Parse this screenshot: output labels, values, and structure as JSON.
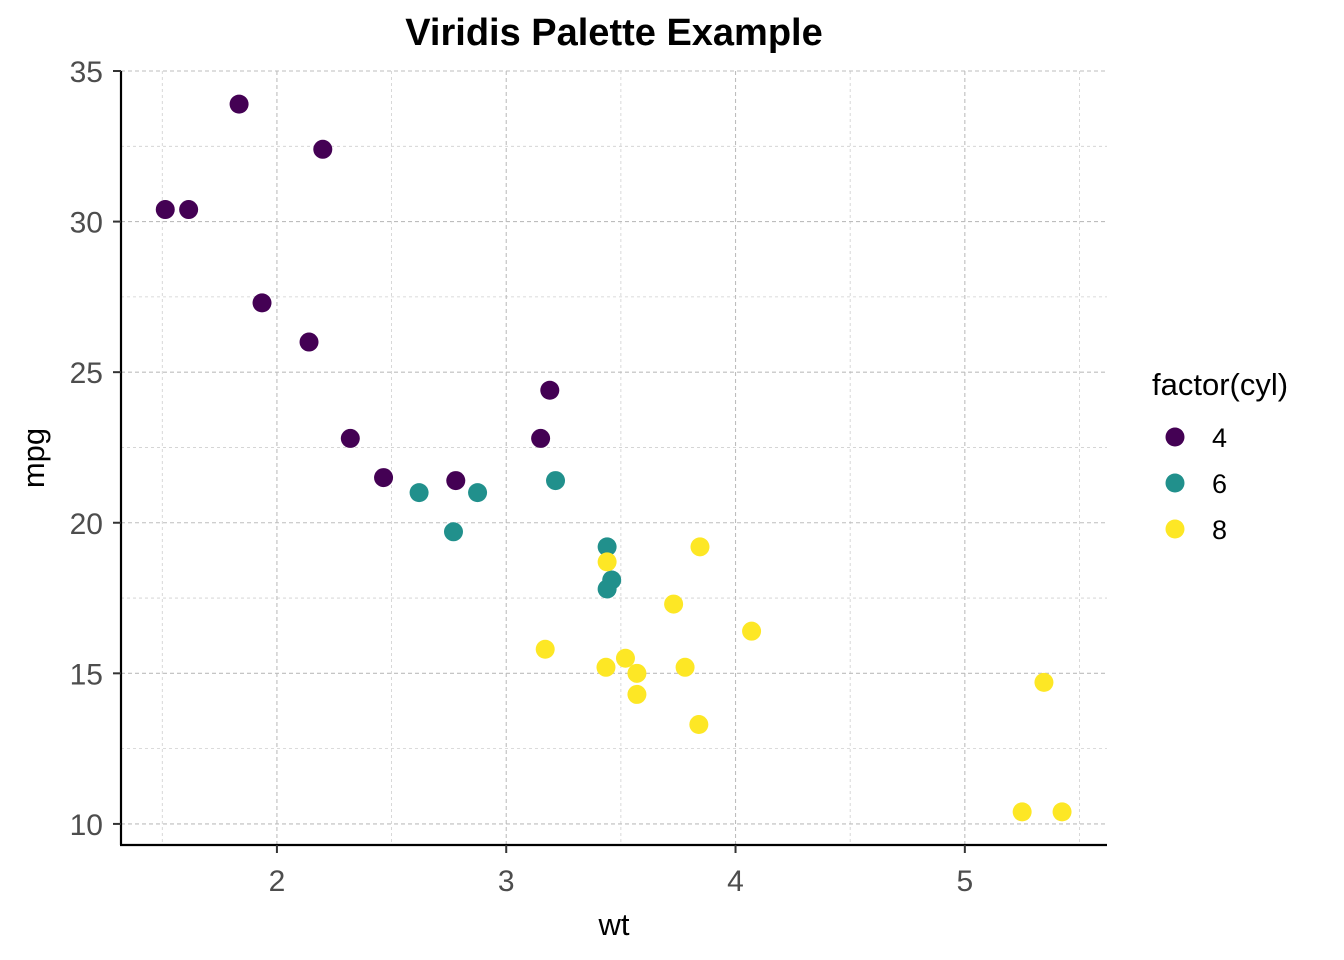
{
  "chart_data": {
    "type": "scatter",
    "title": "Viridis Palette Example",
    "xlabel": "wt",
    "ylabel": "mpg",
    "xlim": [
      1.32,
      5.62
    ],
    "ylim": [
      9.3,
      35.0
    ],
    "x_ticks": [
      2,
      3,
      4,
      5
    ],
    "y_ticks": [
      10,
      15,
      20,
      25,
      30,
      35
    ],
    "x_minor": [
      1.5,
      2.5,
      3.5,
      4.5,
      5.5
    ],
    "y_minor": [
      12.5,
      17.5,
      22.5,
      27.5,
      32.5
    ],
    "grid": true,
    "legend": {
      "title": "factor(cyl)",
      "position": "right"
    },
    "series": [
      {
        "name": "4",
        "color": "#440154",
        "points": [
          {
            "x": 2.32,
            "y": 22.8
          },
          {
            "x": 3.19,
            "y": 24.4
          },
          {
            "x": 3.15,
            "y": 22.8
          },
          {
            "x": 2.2,
            "y": 32.4
          },
          {
            "x": 1.615,
            "y": 30.4
          },
          {
            "x": 1.835,
            "y": 33.9
          },
          {
            "x": 2.465,
            "y": 21.5
          },
          {
            "x": 1.935,
            "y": 27.3
          },
          {
            "x": 2.14,
            "y": 26.0
          },
          {
            "x": 1.513,
            "y": 30.4
          },
          {
            "x": 2.78,
            "y": 21.4
          }
        ]
      },
      {
        "name": "6",
        "color": "#21908C",
        "points": [
          {
            "x": 2.62,
            "y": 21.0
          },
          {
            "x": 2.875,
            "y": 21.0
          },
          {
            "x": 3.215,
            "y": 21.4
          },
          {
            "x": 3.46,
            "y": 18.1
          },
          {
            "x": 3.44,
            "y": 19.2
          },
          {
            "x": 3.44,
            "y": 17.8
          },
          {
            "x": 2.77,
            "y": 19.7
          }
        ]
      },
      {
        "name": "8",
        "color": "#FDE725",
        "points": [
          {
            "x": 3.44,
            "y": 18.7
          },
          {
            "x": 3.57,
            "y": 14.3
          },
          {
            "x": 4.07,
            "y": 16.4
          },
          {
            "x": 3.73,
            "y": 17.3
          },
          {
            "x": 3.78,
            "y": 15.2
          },
          {
            "x": 5.25,
            "y": 10.4
          },
          {
            "x": 5.424,
            "y": 10.4
          },
          {
            "x": 5.345,
            "y": 14.7
          },
          {
            "x": 3.52,
            "y": 15.5
          },
          {
            "x": 3.435,
            "y": 15.2
          },
          {
            "x": 3.84,
            "y": 13.3
          },
          {
            "x": 3.845,
            "y": 19.2
          },
          {
            "x": 3.17,
            "y": 15.8
          },
          {
            "x": 3.57,
            "y": 15.0
          }
        ]
      }
    ]
  }
}
